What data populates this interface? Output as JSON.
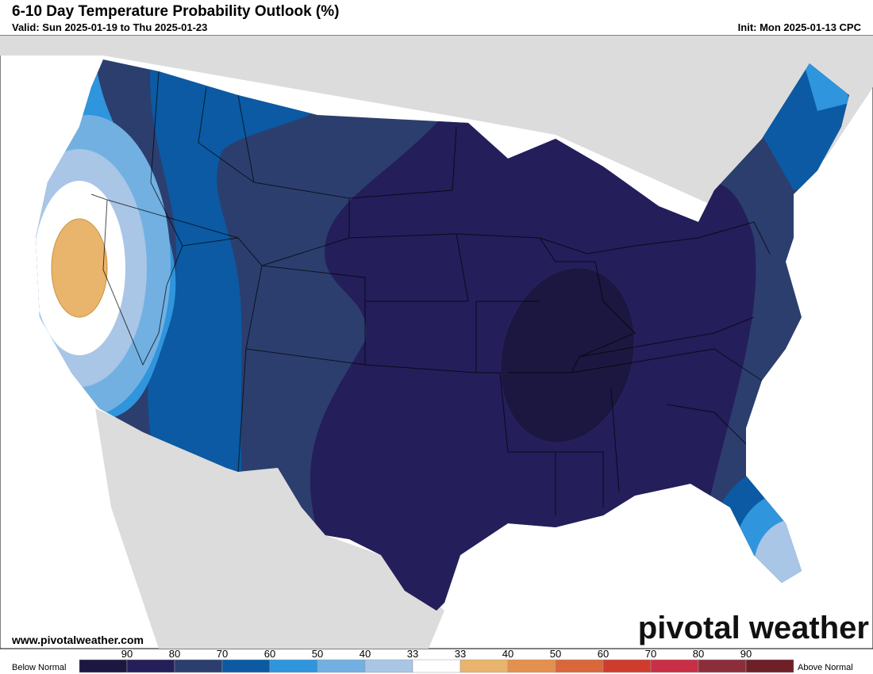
{
  "header": {
    "title": "6-10 Day Temperature Probability Outlook (%)",
    "valid": "Valid: Sun 2025-01-19 to Thu 2025-01-23",
    "init": "Init: Mon 2025-01-13 CPC"
  },
  "footer": {
    "website": "www.pivotalweather.com",
    "logo": "pivotal weather"
  },
  "legend": {
    "below_label": "Below Normal",
    "above_label": "Above Normal",
    "ticks": [
      "90",
      "80",
      "70",
      "60",
      "50",
      "40",
      "33",
      "33",
      "40",
      "50",
      "60",
      "70",
      "80",
      "90"
    ],
    "colors": [
      "#1c1740",
      "#241e5a",
      "#2c3e6e",
      "#0b5aa3",
      "#2f95dc",
      "#72b0e2",
      "#a9c6e6",
      "#ffffff",
      "#e9b46c",
      "#e5904f",
      "#da6739",
      "#cf3c2d",
      "#c92f46",
      "#8c2d3a",
      "#6e1f28"
    ]
  }
}
